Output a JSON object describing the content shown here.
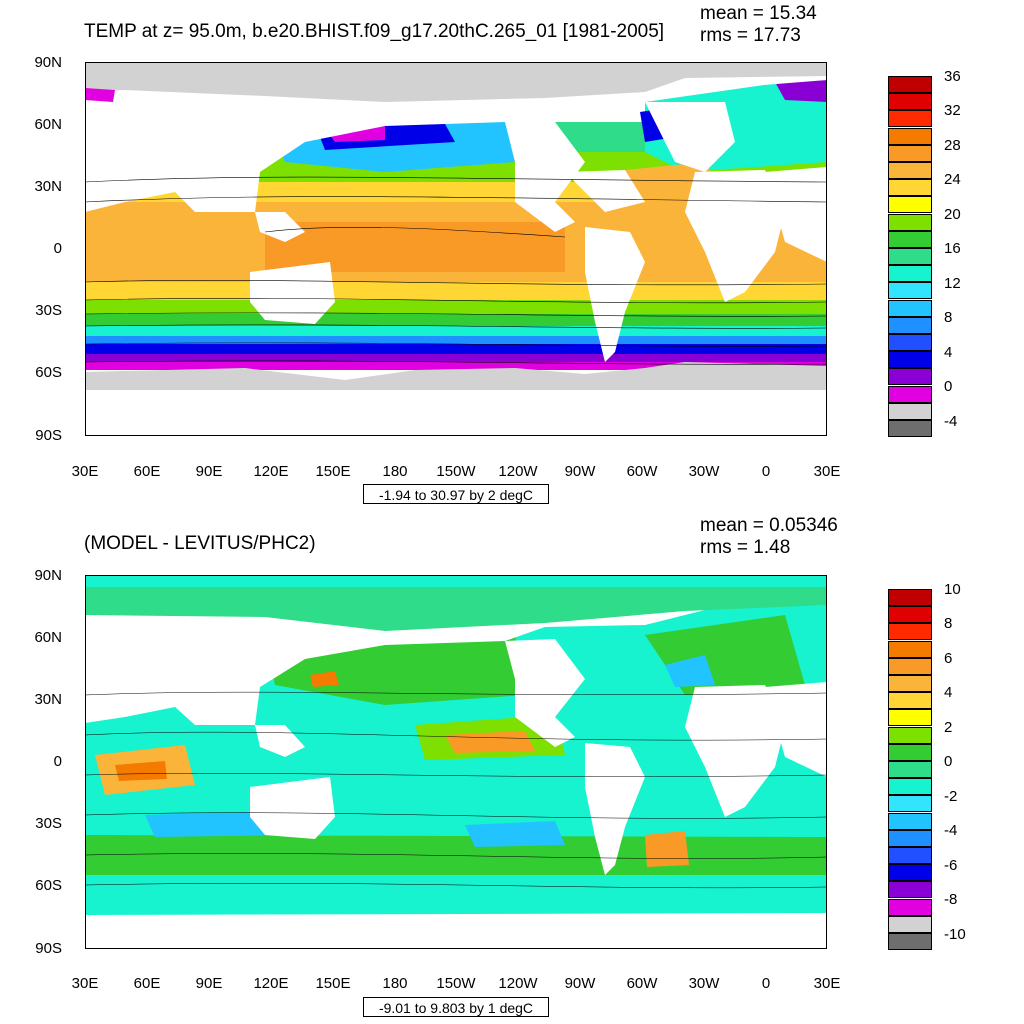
{
  "top": {
    "title": "TEMP at z=  95.0m, b.e20.BHIST.f09_g17.20thC.265_01 [1981-2005]",
    "mean": "mean = 15.34",
    "rms": "rms = 17.73",
    "range_label": "-1.94 to 30.97 by 2 degC",
    "lat_labels": [
      "90N",
      "60N",
      "30N",
      "0",
      "30S",
      "60S",
      "90S"
    ],
    "lon_labels": [
      "30E",
      "60E",
      "90E",
      "120E",
      "150E",
      "180",
      "150W",
      "120W",
      "90W",
      "60W",
      "30W",
      "0",
      "30E"
    ],
    "colorbar_labels": [
      "36",
      "32",
      "28",
      "24",
      "20",
      "16",
      "12",
      "8",
      "4",
      "0",
      "-4"
    ],
    "colors": [
      "#c00000",
      "#e00000",
      "#ff2a00",
      "#f47a00",
      "#f99a26",
      "#fbb43a",
      "#ffd633",
      "#ffff00",
      "#7ee000",
      "#33cc33",
      "#2edc8a",
      "#17f2cf",
      "#33e4ff",
      "#22c4ff",
      "#1e90ff",
      "#2050ff",
      "#0000e8",
      "#8a00d4",
      "#e000e0",
      "#d2d2d2",
      "#6e6e6e"
    ]
  },
  "bottom": {
    "title": "(MODEL - LEVITUS/PHC2)",
    "mean": "mean = 0.05346",
    "rms": "rms = 1.48",
    "range_label": "-9.01 to 9.803 by 1 degC",
    "lat_labels": [
      "90N",
      "60N",
      "30N",
      "0",
      "30S",
      "60S",
      "90S"
    ],
    "lon_labels": [
      "30E",
      "60E",
      "90E",
      "120E",
      "150E",
      "180",
      "150W",
      "120W",
      "90W",
      "60W",
      "30W",
      "0",
      "30E"
    ],
    "colorbar_labels": [
      "10",
      "8",
      "6",
      "4",
      "2",
      "0",
      "-2",
      "-4",
      "-6",
      "-8",
      "-10"
    ],
    "colors": [
      "#c00000",
      "#e00000",
      "#ff2a00",
      "#f47a00",
      "#f99a26",
      "#fbb43a",
      "#ffd633",
      "#ffff00",
      "#7ee000",
      "#33cc33",
      "#2edc8a",
      "#17f2cf",
      "#33e4ff",
      "#22c4ff",
      "#1e90ff",
      "#2050ff",
      "#0000e8",
      "#8a00d4",
      "#e000e0",
      "#d2d2d2",
      "#6e6e6e"
    ]
  }
}
